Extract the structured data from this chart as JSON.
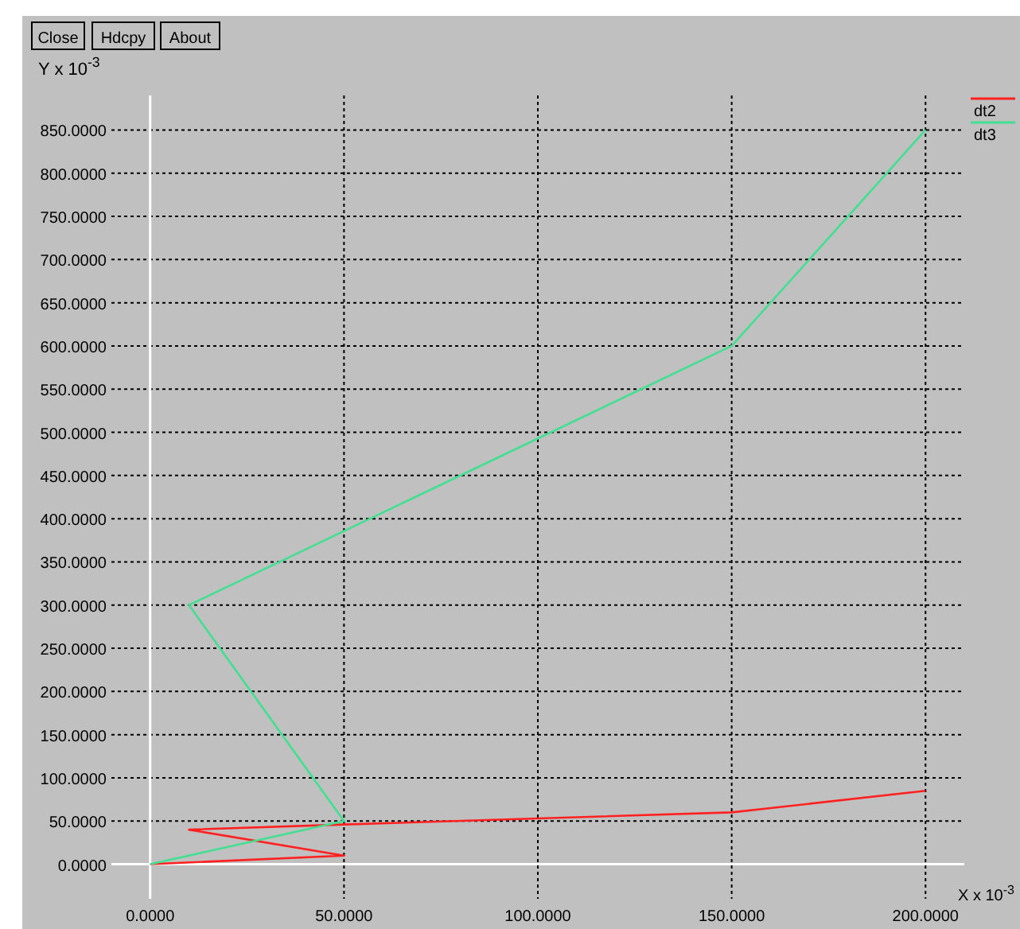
{
  "chart_data": {
    "type": "line",
    "xlabel": "X x 10$^{-3}$",
    "ylabel": "Y x 10$^{-3}$",
    "annotations": [
      "Close",
      "Hdcpy",
      "About"
    ],
    "xlim": [
      -10,
      210
    ],
    "ylim": [
      -40,
      890
    ],
    "xticks": [
      {
        "value": 0,
        "label": "0.0000"
      },
      {
        "value": 50,
        "label": "50.0000"
      },
      {
        "value": 100,
        "label": "100.0000"
      },
      {
        "value": 150,
        "label": "150.0000"
      },
      {
        "value": 200,
        "label": "200.0000"
      }
    ],
    "yticks": [
      {
        "value": 0,
        "label": "0.0000"
      },
      {
        "value": 50,
        "label": "50.0000"
      },
      {
        "value": 100,
        "label": "100.0000"
      },
      {
        "value": 150,
        "label": "150.0000"
      },
      {
        "value": 200,
        "label": "200.0000"
      },
      {
        "value": 250,
        "label": "250.0000"
      },
      {
        "value": 300,
        "label": "300.0000"
      },
      {
        "value": 350,
        "label": "350.0000"
      },
      {
        "value": 400,
        "label": "400.0000"
      },
      {
        "value": 450,
        "label": "450.0000"
      },
      {
        "value": 500,
        "label": "500.0000"
      },
      {
        "value": 550,
        "label": "550.0000"
      },
      {
        "value": 600,
        "label": "600.0000"
      },
      {
        "value": 650,
        "label": "650.0000"
      },
      {
        "value": 700,
        "label": "700.0000"
      },
      {
        "value": 750,
        "label": "750.0000"
      },
      {
        "value": 800,
        "label": "800.0000"
      },
      {
        "value": 850,
        "label": "850.0000"
      }
    ],
    "grid": true,
    "legend": "top right",
    "line_style": "solid",
    "marker": "none",
    "series": [
      {
        "name": "dt2",
        "color": "#ff2020",
        "x": [
          0,
          50,
          10,
          50,
          150,
          200
        ],
        "values": [
          0,
          10,
          40,
          46,
          60,
          85
        ]
      },
      {
        "name": "dt3",
        "color": "#40e090",
        "x": [
          0,
          50,
          10,
          150,
          200
        ],
        "values": [
          0,
          50,
          300,
          600,
          850
        ]
      }
    ]
  }
}
